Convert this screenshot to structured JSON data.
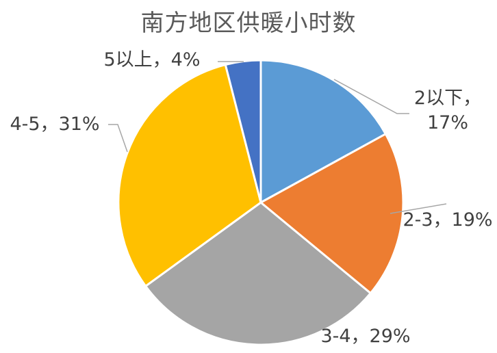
{
  "chart_data": {
    "type": "pie",
    "title": "南方地区供暖小时数",
    "categories": [
      "2以下",
      "2-3",
      "3-4",
      "4-5",
      "5以上"
    ],
    "values": [
      17,
      19,
      29,
      31,
      4
    ],
    "unit": "%",
    "data_labels": [
      "2以下，17%",
      "2-3，19%",
      "3-4，29%",
      "4-5，31%",
      "5以上，4%"
    ],
    "colors": [
      "#5B9BD5",
      "#ED7D31",
      "#A5A5A5",
      "#FFC000",
      "#4472C4"
    ],
    "start_angle_deg": 0,
    "direction": "clockwise",
    "legend": "none"
  }
}
